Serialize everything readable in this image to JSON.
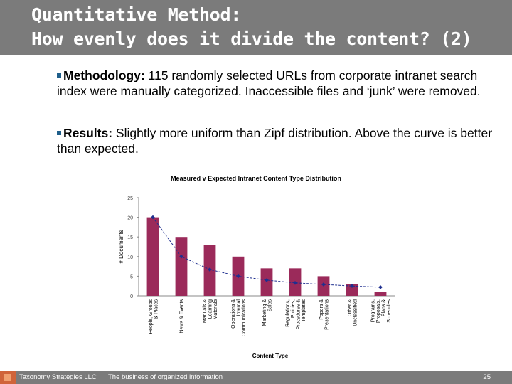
{
  "slide": {
    "title_line1": "Quantitative Method:",
    "title_line2": "How evenly does it divide the content? (2)",
    "bullets": [
      {
        "label": "Methodology:",
        "text": " 115 randomly selected URLs from corporate intranet search index were manually categorized. Inaccessible files and ‘junk’ were removed."
      },
      {
        "label": "Results:",
        "text": " Slightly more uniform than Zipf distribution. Above the curve is better than expected."
      }
    ],
    "footer": {
      "company": "Taxonomy Strategies LLC",
      "tagline": "The business of organized information",
      "page": "25"
    }
  },
  "colors": {
    "title_bar": "#7b7b7b",
    "bar_fill": "#9b2a5a",
    "expected_line": "#1f2f8f",
    "bullet_marker": "#1f5f8b"
  },
  "chart_data": {
    "type": "bar",
    "title": "Measured v Expected Intranet Content Type Distribution",
    "xlabel": "Content Type",
    "ylabel": "# Documents",
    "ylim": [
      0,
      25
    ],
    "yticks": [
      0,
      5,
      10,
      15,
      20,
      25
    ],
    "grid": false,
    "legend": "none",
    "categories": [
      "People, Groups & Places",
      "News & Events",
      "Manuals & Learning Materials",
      "Operations & Internal Communications",
      "Marketing & Sales",
      "Regulations, Policies, Procedures & Templates",
      "Papers & Presentations",
      "Other & Unclassified",
      "Programs, Proposals, Plans & Schedules"
    ],
    "series": [
      {
        "type": "bar",
        "values": [
          20,
          15,
          13,
          10,
          7,
          7,
          5,
          3,
          1
        ]
      },
      {
        "type": "line",
        "values": [
          20,
          10,
          6.7,
          5,
          4,
          3.3,
          2.9,
          2.5,
          2.2
        ]
      }
    ]
  }
}
